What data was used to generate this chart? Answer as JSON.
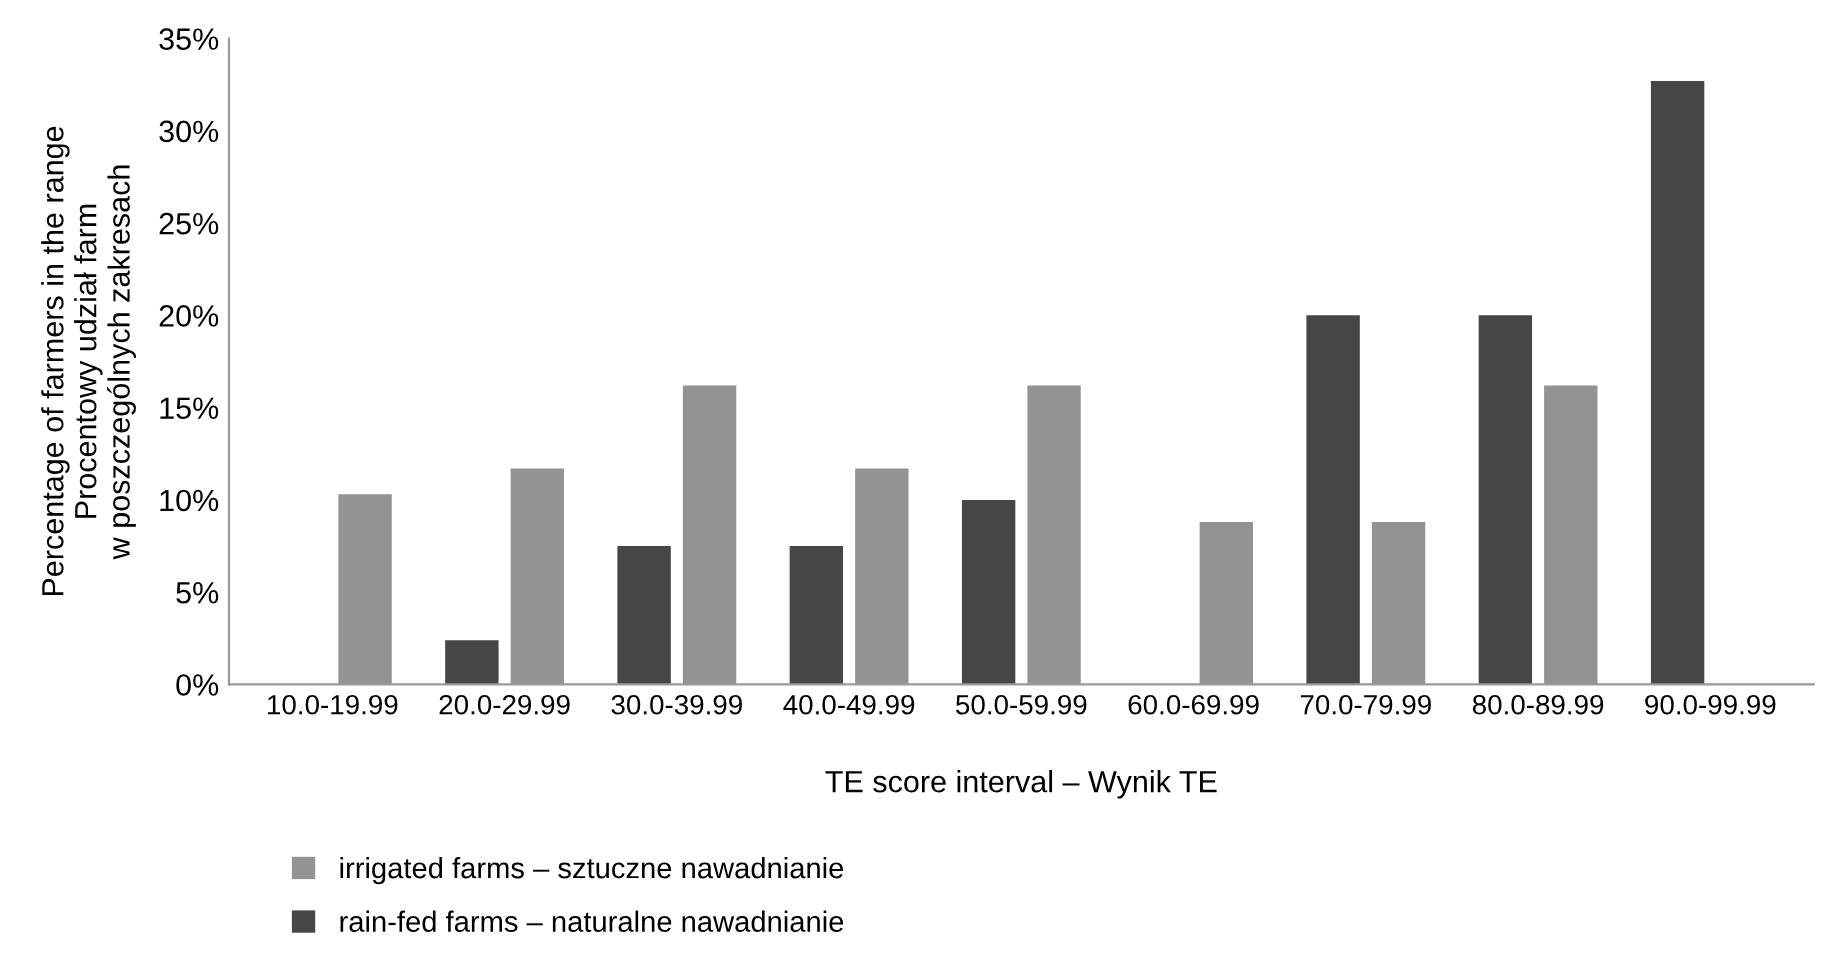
{
  "chart_data": {
    "type": "bar",
    "xlabel": "TE score interval – Wynik TE",
    "ylabel": "Percentage of farmers in the range\nProcentowy udział farm\nw poszczególnych zakresach",
    "categories": [
      "10.0-19.99",
      "20.0-29.99",
      "30.0-39.99",
      "40.0-49.99",
      "50.0-59.99",
      "60.0-69.99",
      "70.0-79.99",
      "80.0-89.99",
      "90.0-99.99"
    ],
    "series": [
      {
        "name": "rain-fed farms – naturalne nawadnianie",
        "color": "#464646",
        "values": [
          0,
          2.4,
          7.5,
          7.5,
          10.0,
          0,
          20.0,
          20.0,
          32.7
        ]
      },
      {
        "name": "irrigated farms – sztuczne nawadnianie",
        "color": "#939393",
        "values": [
          10.3,
          11.7,
          16.2,
          11.7,
          16.2,
          8.8,
          8.8,
          16.2,
          0
        ]
      }
    ],
    "ylim": [
      0,
      35
    ],
    "yticks": [
      {
        "value": 0,
        "label": "0%"
      },
      {
        "value": 5,
        "label": "5%"
      },
      {
        "value": 10,
        "label": "10%"
      },
      {
        "value": 15,
        "label": "15%"
      },
      {
        "value": 20,
        "label": "20%"
      },
      {
        "value": 25,
        "label": "25%"
      },
      {
        "value": 30,
        "label": "30%"
      },
      {
        "value": 35,
        "label": "35%"
      }
    ],
    "grid": false,
    "legend": "bottom left"
  }
}
